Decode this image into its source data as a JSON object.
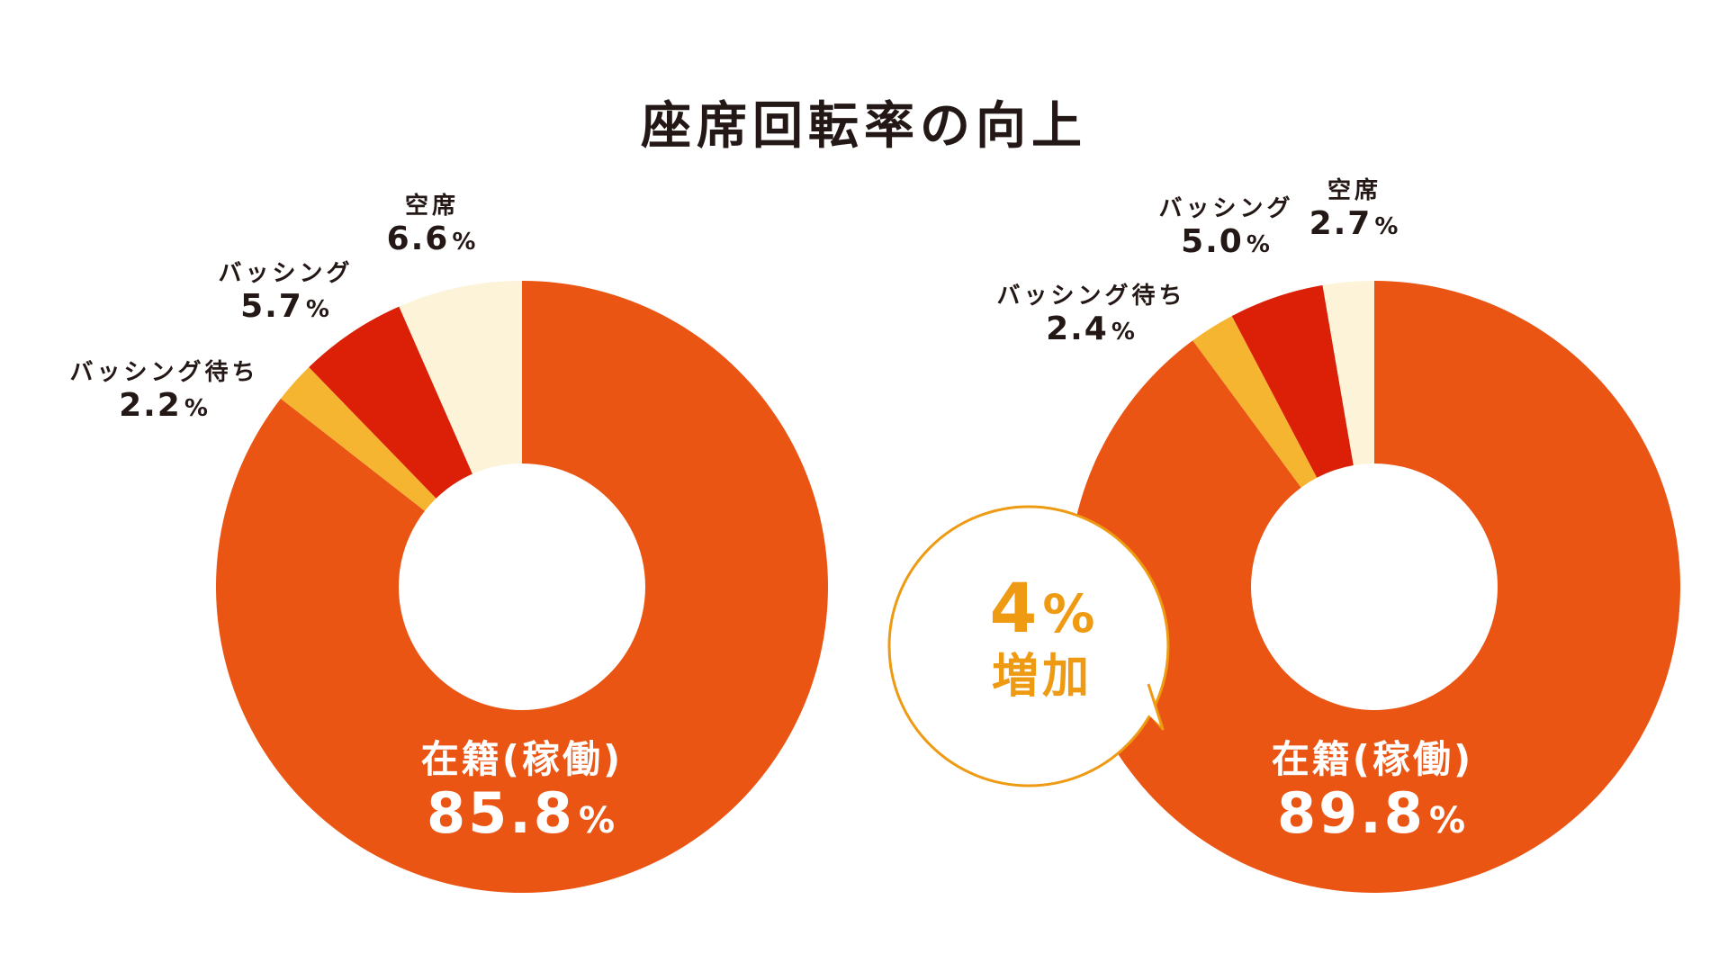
{
  "title": "座席回転率の向上",
  "colors": {
    "occupied": "#ea5514",
    "bussing": "#dc2008",
    "bussing_wait": "#f5b531",
    "vacant": "#fcf3d9",
    "bubble": "#ee9a12"
  },
  "chart_data": [
    {
      "type": "pie",
      "donut": true,
      "categories": [
        "在籍(稼働)",
        "バッシング待ち",
        "バッシング",
        "空席"
      ],
      "values": [
        85.8,
        2.2,
        5.7,
        6.6
      ],
      "labels": {
        "occupied": {
          "name": "在籍(稼働)",
          "value": "85.8",
          "unit": "%"
        },
        "bussing_wait": {
          "name": "バッシング待ち",
          "value": "2.2",
          "unit": "%"
        },
        "bussing": {
          "name": "バッシング",
          "value": "5.7",
          "unit": "%"
        },
        "vacant": {
          "name": "空席",
          "value": "6.6",
          "unit": "%"
        }
      }
    },
    {
      "type": "pie",
      "donut": true,
      "categories": [
        "在籍(稼働)",
        "バッシング待ち",
        "バッシング",
        "空席"
      ],
      "values": [
        89.8,
        2.4,
        5.0,
        2.7
      ],
      "labels": {
        "occupied": {
          "name": "在籍(稼働)",
          "value": "89.8",
          "unit": "%"
        },
        "bussing_wait": {
          "name": "バッシング待ち",
          "value": "2.4",
          "unit": "%"
        },
        "bussing": {
          "name": "バッシング",
          "value": "5.0",
          "unit": "%"
        },
        "vacant": {
          "name": "空席",
          "value": "2.7",
          "unit": "%"
        }
      }
    }
  ],
  "callout": {
    "value": "4",
    "unit": "%",
    "text": "増加"
  }
}
